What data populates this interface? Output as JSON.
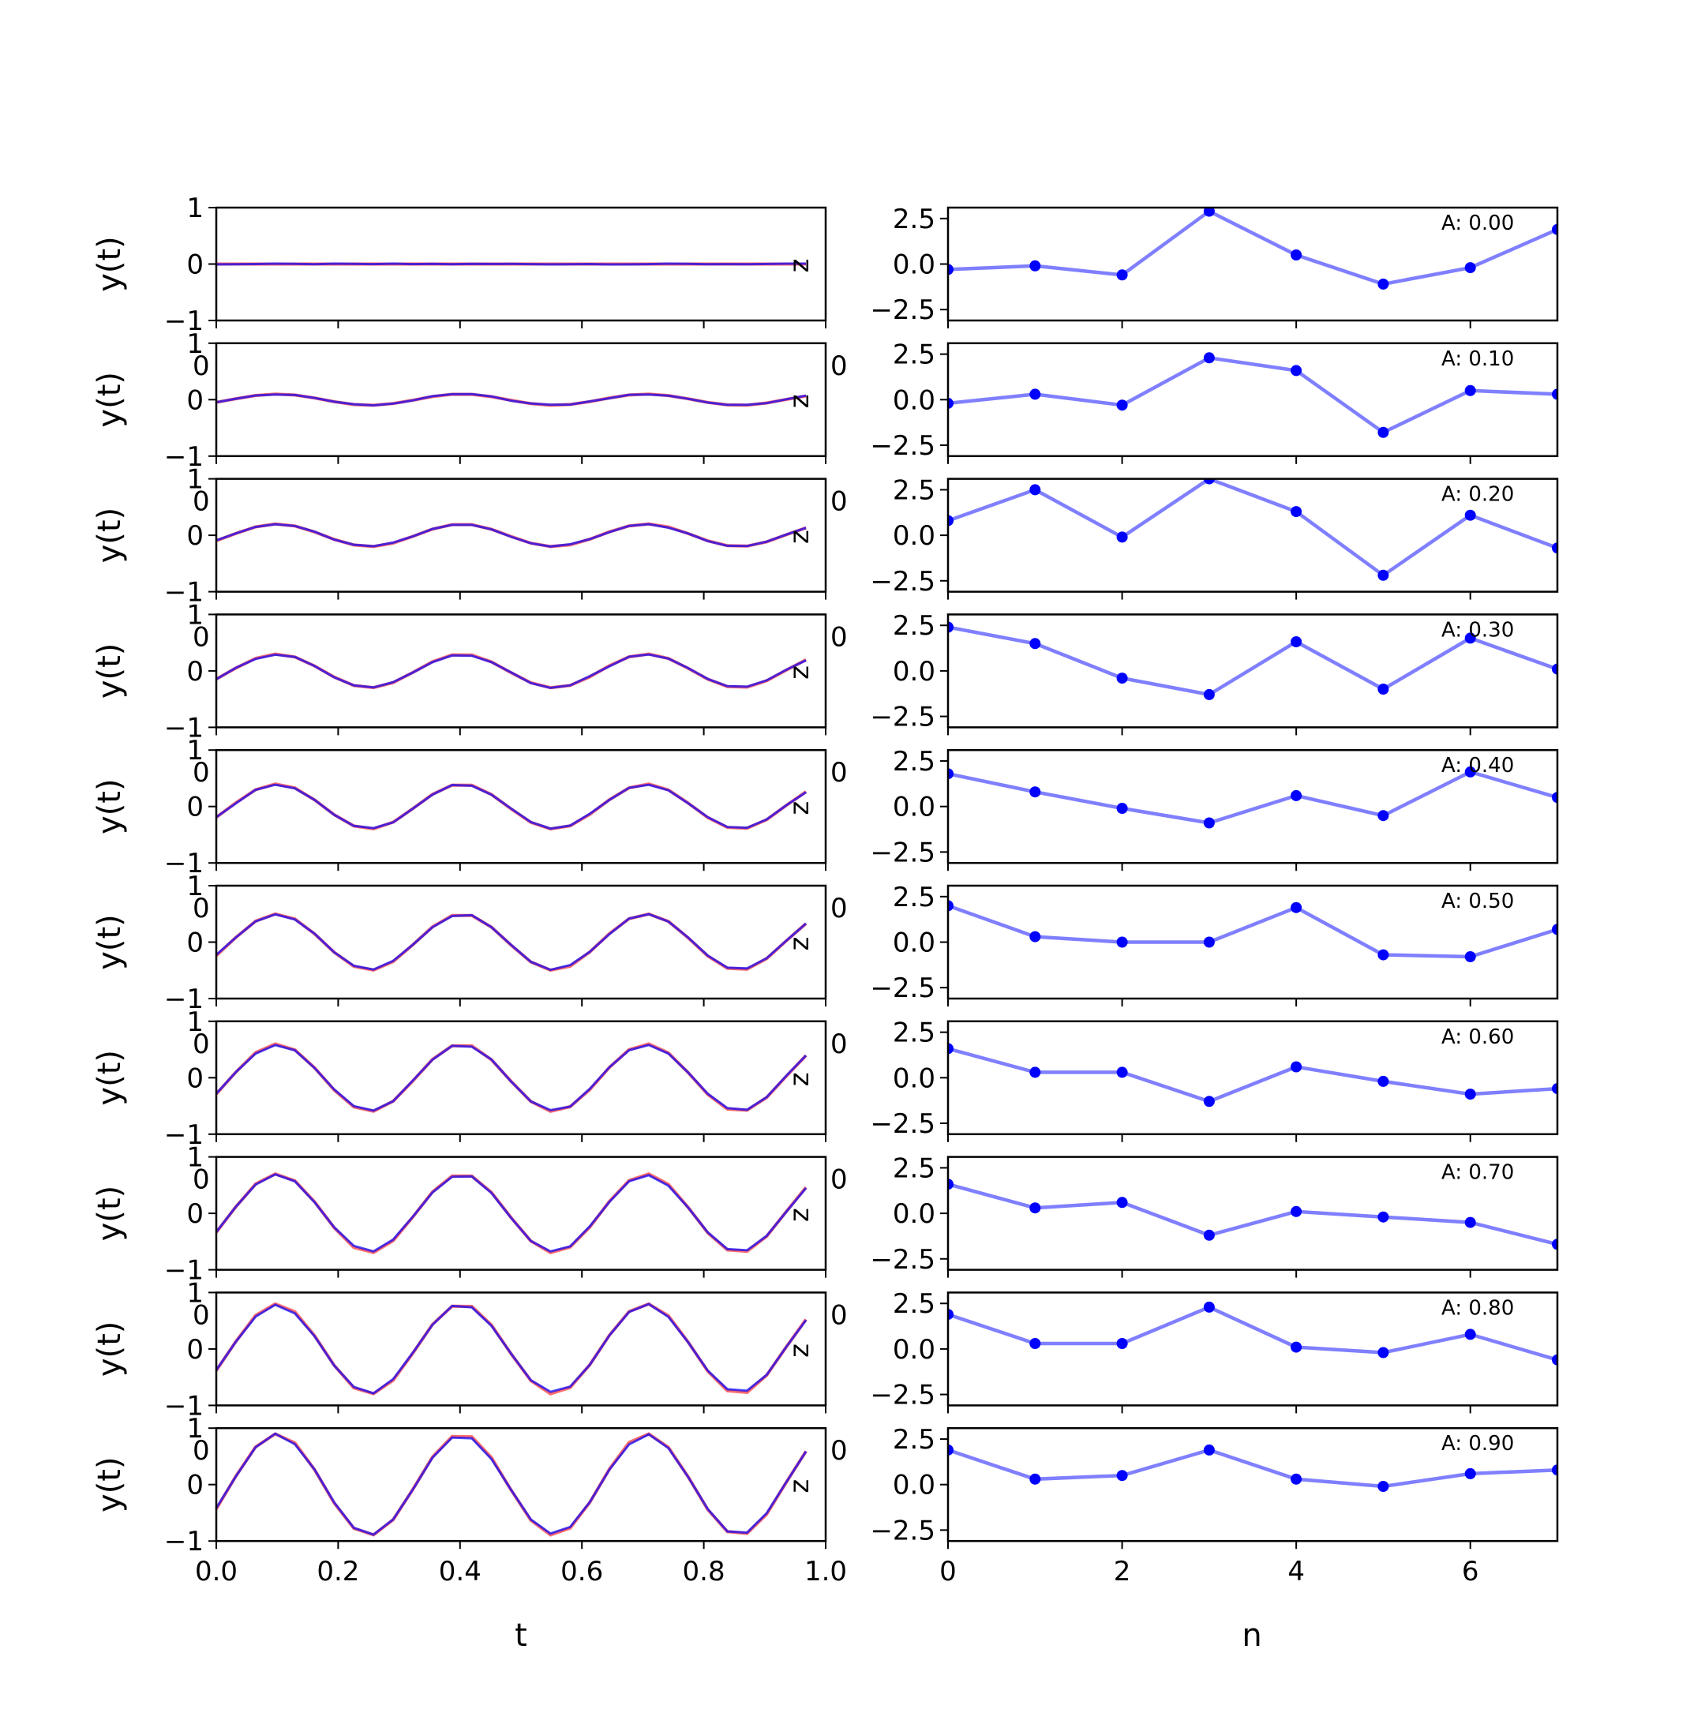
{
  "figure": {
    "left_xlabel": "t",
    "right_xlabel": "n",
    "left_ylabel": "y(t)",
    "left_xticks": [
      "0.0",
      "0.2",
      "0.4",
      "0.6",
      "0.8",
      "1.0"
    ],
    "left_yticks": [
      "−1",
      "0",
      "1"
    ],
    "right_xticks": [
      "0",
      "2",
      "4",
      "6"
    ],
    "right_yticks": [
      "−2.5",
      "0.0",
      "2.5"
    ],
    "left_overlap_label": "0",
    "right_overlap_label": "0",
    "z_marker": "z",
    "colors": {
      "true": "#ff3b3b",
      "estimate": "#0000ff",
      "samples": "#0000ff"
    }
  },
  "chart_data": {
    "type": "line",
    "layout": "10 rows x 2 columns",
    "left": {
      "x_range": [
        0,
        1
      ],
      "y_range": [
        -1,
        1
      ],
      "series": [
        "true signal (red)",
        "estimate (blue)"
      ],
      "frequency_cycles": 3.3,
      "phase": -0.5,
      "amplitudes": [
        0.0,
        0.1,
        0.2,
        0.3,
        0.4,
        0.5,
        0.6,
        0.7,
        0.8,
        0.9
      ]
    },
    "right": {
      "x_range": [
        0,
        7
      ],
      "y_range": [
        -3.1,
        3.1
      ],
      "n": [
        0,
        1,
        2,
        3,
        4,
        5,
        6,
        7
      ],
      "panels": [
        {
          "label": "A: 0.00",
          "values": [
            -0.3,
            -0.1,
            -0.6,
            2.9,
            0.5,
            -1.1,
            -0.2,
            1.9
          ]
        },
        {
          "label": "A: 0.10",
          "values": [
            -0.2,
            0.3,
            -0.3,
            2.3,
            1.6,
            -1.8,
            0.5,
            0.3
          ]
        },
        {
          "label": "A: 0.20",
          "values": [
            0.8,
            2.5,
            -0.1,
            3.1,
            1.3,
            -2.2,
            1.1,
            -0.7
          ]
        },
        {
          "label": "A: 0.30",
          "values": [
            2.4,
            1.5,
            -0.4,
            -1.3,
            1.6,
            -1.0,
            1.8,
            0.1
          ]
        },
        {
          "label": "A: 0.40",
          "values": [
            1.8,
            0.8,
            -0.1,
            -0.9,
            0.6,
            -0.5,
            1.9,
            0.5
          ]
        },
        {
          "label": "A: 0.50",
          "values": [
            2.0,
            0.3,
            0.0,
            0.0,
            1.9,
            -0.7,
            -0.8,
            0.7
          ]
        },
        {
          "label": "A: 0.60",
          "values": [
            1.6,
            0.3,
            0.3,
            -1.3,
            0.6,
            -0.2,
            -0.9,
            -0.6
          ]
        },
        {
          "label": "A: 0.70",
          "values": [
            1.6,
            0.3,
            0.6,
            -1.2,
            0.1,
            -0.2,
            -0.5,
            -1.7
          ]
        },
        {
          "label": "A: 0.80",
          "values": [
            1.9,
            0.3,
            0.3,
            2.3,
            0.1,
            -0.2,
            0.8,
            -0.6
          ]
        },
        {
          "label": "A: 0.90",
          "values": [
            1.9,
            0.3,
            0.5,
            1.9,
            0.3,
            -0.1,
            0.6,
            0.8
          ]
        }
      ]
    }
  }
}
